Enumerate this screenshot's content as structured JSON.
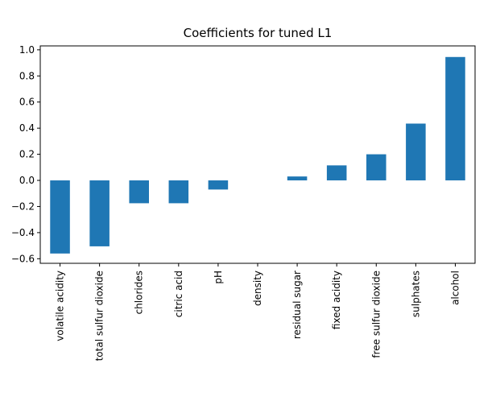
{
  "chart_data": {
    "type": "bar",
    "title": "Coefficients for tuned L1",
    "xlabel": "",
    "ylabel": "",
    "categories": [
      "volatile acidity",
      "total sulfur dioxide",
      "chlorides",
      "citric acid",
      "pH",
      "density",
      "residual sugar",
      "fixed acidity",
      "free sulfur dioxide",
      "sulphates",
      "alcohol"
    ],
    "values": [
      -0.56,
      -0.505,
      -0.175,
      -0.175,
      -0.07,
      0.0,
      0.03,
      0.115,
      0.2,
      0.435,
      0.945
    ],
    "ylim": [
      -0.635,
      1.03
    ],
    "yticks": [
      -0.6,
      -0.4,
      -0.2,
      0.0,
      0.2,
      0.4,
      0.6,
      0.8,
      1.0
    ],
    "ytick_labels": [
      "−0.6",
      "−0.4",
      "−0.2",
      "0.0",
      "0.2",
      "0.4",
      "0.6",
      "0.8",
      "1.0"
    ],
    "bar_color": "#1f77b4",
    "grid": false,
    "legend": "none"
  }
}
